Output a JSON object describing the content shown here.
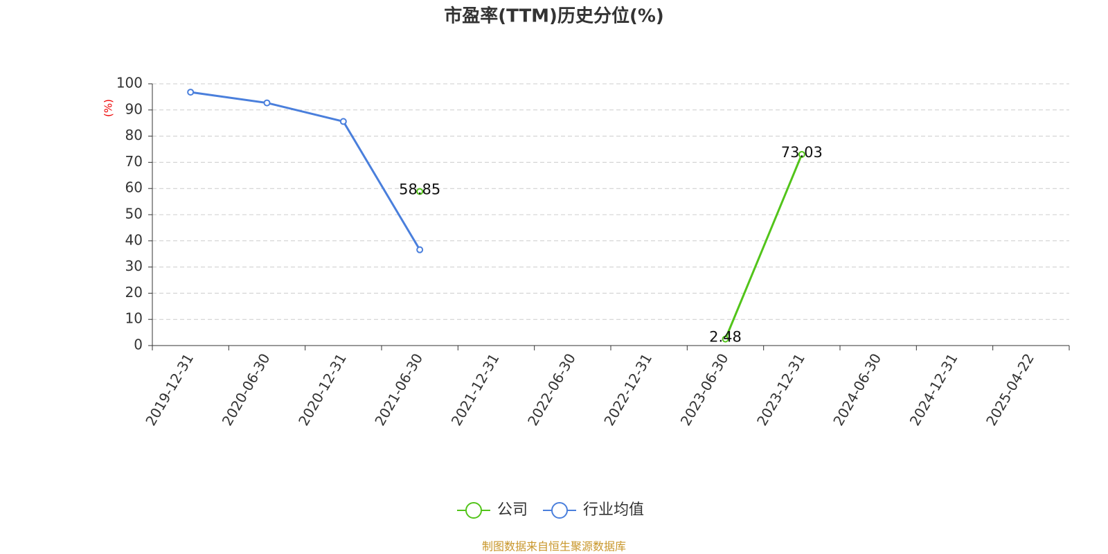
{
  "chart_data": {
    "type": "line",
    "title": "市盈率(TTM)历史分位(%)",
    "y_axis_label": "(%)",
    "categories": [
      "2019-12-31",
      "2020-06-30",
      "2020-12-31",
      "2021-06-30",
      "2021-12-31",
      "2022-06-30",
      "2022-12-31",
      "2023-06-30",
      "2023-12-31",
      "2024-06-30",
      "2024-12-31",
      "2025-04-22"
    ],
    "series": [
      {
        "name": "公司",
        "color": "#52c41a",
        "data_labels": true,
        "values": [
          null,
          null,
          null,
          58.85,
          null,
          null,
          null,
          2.48,
          73.03,
          null,
          null,
          null
        ]
      },
      {
        "name": "行业均值",
        "color": "#4a7fdc",
        "data_labels": false,
        "values": [
          96.8,
          92.7,
          85.6,
          36.6,
          null,
          null,
          null,
          null,
          null,
          null,
          null,
          null
        ]
      }
    ],
    "ylim": [
      0,
      100
    ],
    "yticks": [
      0,
      10,
      20,
      30,
      40,
      50,
      60,
      70,
      80,
      90,
      100
    ],
    "grid": true,
    "source": "制图数据来自恒生聚源数据库"
  }
}
